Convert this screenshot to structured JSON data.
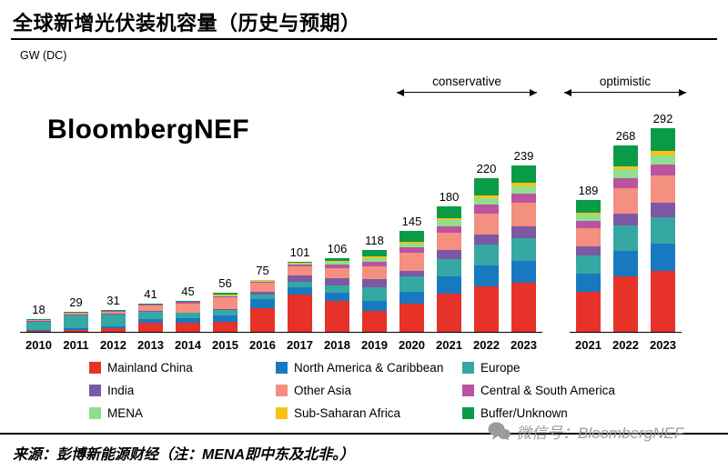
{
  "title": "全球新增光伏装机容量（历史与预期）",
  "chart": {
    "unit_label": "GW (DC)",
    "brand_watermark": "BloombergNEF",
    "scenario_conservative": "conservative",
    "scenario_optimistic": "optimistic"
  },
  "chart_data": {
    "type": "bar",
    "stacked": true,
    "unit": "GW (DC)",
    "ylim": [
      0,
      300
    ],
    "legend_position": "bottom",
    "groups": [
      {
        "name": "history-and-conservative",
        "categories": [
          "2010",
          "2011",
          "2012",
          "2013",
          "2014",
          "2015",
          "2016",
          "2017",
          "2018",
          "2019",
          "2020",
          "2021",
          "2022",
          "2023"
        ],
        "totals": [
          18,
          29,
          31,
          41,
          45,
          56,
          75,
          101,
          106,
          118,
          145,
          180,
          220,
          239
        ],
        "values_key": "values_main"
      },
      {
        "name": "optimistic",
        "categories": [
          "2021",
          "2022",
          "2023"
        ],
        "totals": [
          189,
          268,
          292
        ],
        "values_key": "values_optimistic"
      }
    ],
    "series": [
      {
        "name": "Mainland China",
        "color": "#e63229",
        "values_main": [
          1,
          3,
          5,
          13,
          13,
          15,
          34,
          53,
          44,
          30,
          40,
          55,
          65,
          70
        ],
        "values_optimistic": [
          58,
          80,
          87
        ]
      },
      {
        "name": "North America & Caribbean",
        "color": "#1879c0",
        "values_main": [
          1,
          2,
          3,
          5,
          6,
          8,
          13,
          11,
          12,
          14,
          18,
          25,
          30,
          32
        ],
        "values_optimistic": [
          26,
          36,
          39
        ]
      },
      {
        "name": "Europe",
        "color": "#36a8a4",
        "values_main": [
          13,
          19,
          17,
          11,
          8,
          8,
          6,
          8,
          11,
          20,
          22,
          25,
          30,
          33
        ],
        "values_optimistic": [
          26,
          36,
          39
        ]
      },
      {
        "name": "India",
        "color": "#7d58a5",
        "values_main": [
          0.2,
          0.5,
          1,
          1,
          1,
          2,
          4,
          9,
          10,
          12,
          8,
          12,
          15,
          17
        ],
        "values_optimistic": [
          13,
          18,
          20
        ]
      },
      {
        "name": "Other Asia",
        "color": "#f4907f",
        "values_main": [
          1.5,
          2.5,
          3,
          8,
          13,
          16,
          13,
          13,
          15,
          18,
          25,
          25,
          30,
          33
        ],
        "values_optimistic": [
          26,
          36,
          39
        ]
      },
      {
        "name": "Central & South America",
        "color": "#bb53a0",
        "values_main": [
          0.3,
          0.5,
          0.7,
          1,
          1.5,
          2,
          2,
          3,
          5,
          6,
          8,
          10,
          12,
          13
        ],
        "values_optimistic": [
          10,
          15,
          16
        ]
      },
      {
        "name": "MENA",
        "color": "#8fdf8f",
        "values_main": [
          0.2,
          0.3,
          0.3,
          0.5,
          0.8,
          1.5,
          1.5,
          1.5,
          4,
          6,
          6,
          8,
          10,
          11
        ],
        "values_optimistic": [
          9,
          12,
          13
        ]
      },
      {
        "name": "Sub-Saharan Africa",
        "color": "#f6c21a",
        "values_main": [
          0.1,
          0.2,
          0.2,
          0.3,
          0.4,
          0.5,
          0.5,
          0.5,
          1,
          2,
          2,
          3,
          4,
          5
        ],
        "values_optimistic": [
          3,
          5,
          6
        ]
      },
      {
        "name": "Buffer/Unknown",
        "color": "#0a9b47",
        "values_main": [
          0.7,
          1,
          0.8,
          1.2,
          1.3,
          3,
          1,
          2,
          4,
          10,
          16,
          17,
          24,
          25
        ],
        "values_optimistic": [
          18,
          30,
          33
        ]
      }
    ]
  },
  "footer": {
    "source": "来源：彭博新能源财经（注：MENA即中东及北非。）",
    "wechat_watermark": "微信号：BloombergNEF"
  }
}
